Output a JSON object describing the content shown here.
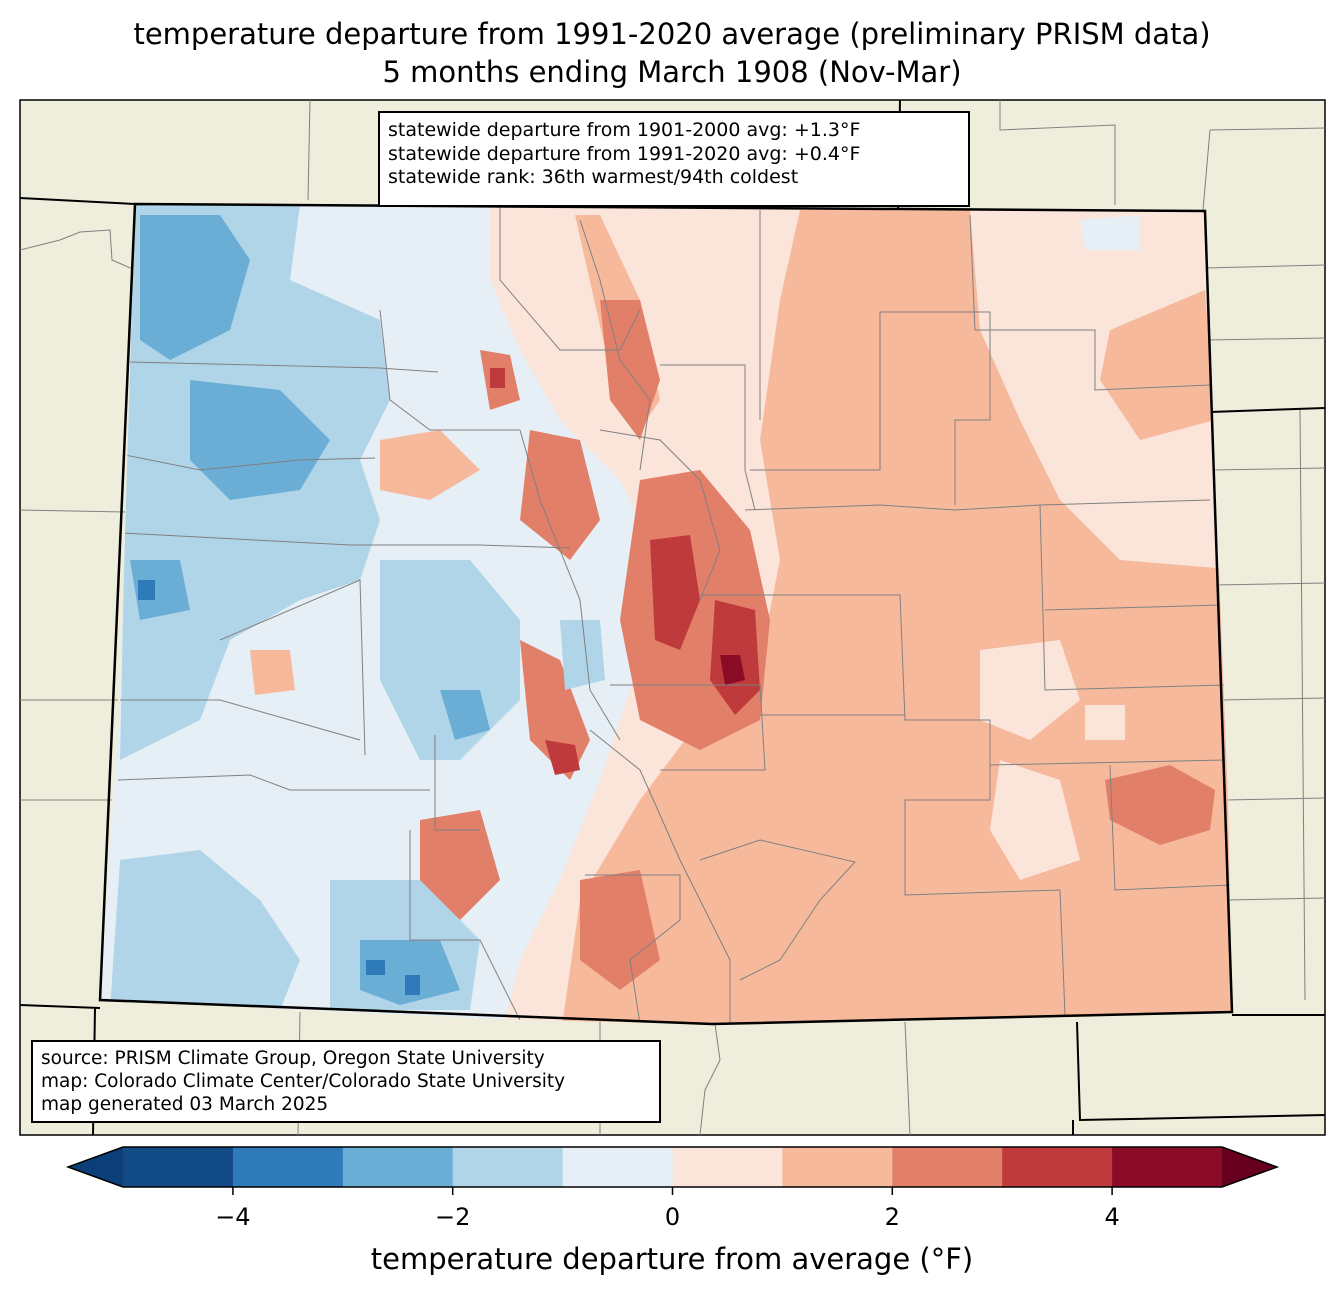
{
  "title": {
    "line1": "temperature departure from 1991-2020 average (preliminary PRISM data)",
    "line2": "5 months ending March 1908 (Nov-Mar)"
  },
  "stats": {
    "line1": "statewide departure from 1901-2000 avg: +1.3°F",
    "line2": "statewide departure from 1991-2020 avg: +0.4°F",
    "line3": "statewide rank: 36th warmest/94th coldest"
  },
  "source": {
    "line1": "source: PRISM Climate Group, Oregon State University",
    "line2": "map: Colorado Climate Center/Colorado State University",
    "line3": "map generated 03 March 2025"
  },
  "colorbar": {
    "label": "temperature departure from average (°F)",
    "ticks": [
      "−4",
      "−2",
      "0",
      "2",
      "4"
    ],
    "tick_values": [
      -4,
      -2,
      0,
      2,
      4
    ],
    "range": [
      -5,
      5
    ],
    "step": 1,
    "extend": "both",
    "colors": [
      "#0c3f7a",
      "#134b87",
      "#2f7ab8",
      "#6aadd5",
      "#b1d5e8",
      "#e6eff6",
      "#fbe5db",
      "#f6b99c",
      "#e27f68",
      "#bf3a3c",
      "#8a0c27",
      "#67001f"
    ]
  },
  "map": {
    "land_color": "#efeedc",
    "county_line_color": "#808080",
    "state_line_color": "#000000"
  }
}
